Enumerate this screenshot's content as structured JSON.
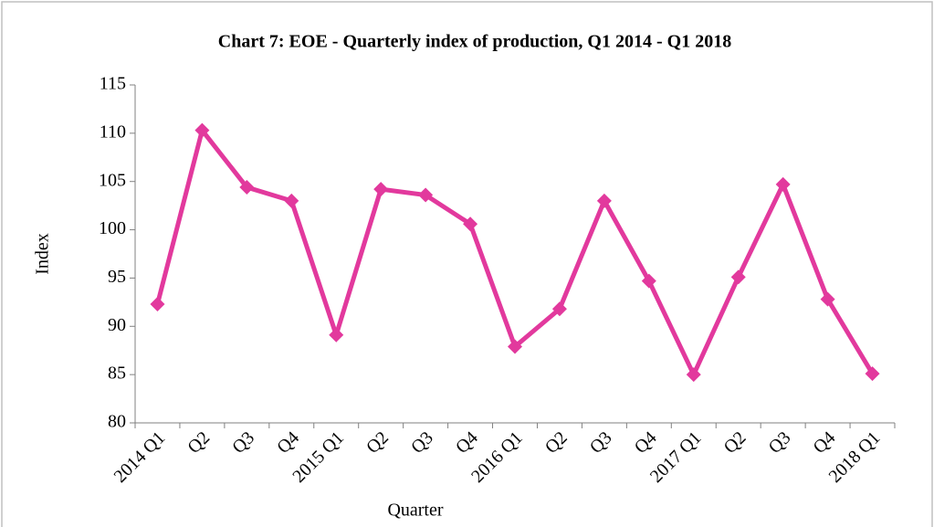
{
  "chart_data": {
    "type": "line",
    "title": "Chart 7: EOE - Quarterly index of production, Q1 2014 - Q1 2018",
    "x_label": "Quarter",
    "y_label": "Index",
    "categories": [
      "2014 Q1",
      "Q2",
      "Q3",
      "Q4",
      "2015 Q1",
      "Q2",
      "Q3",
      "Q4",
      "2016 Q1",
      "Q2",
      "Q3",
      "Q4",
      "2017 Q1",
      "Q2",
      "Q3",
      "Q4",
      "2018 Q1"
    ],
    "series": [
      {
        "name": "Index",
        "color": "#e2399d",
        "values": [
          92.3,
          110.3,
          104.4,
          103.0,
          89.1,
          104.2,
          103.6,
          100.6,
          87.9,
          91.8,
          103.0,
          94.7,
          85.0,
          95.1,
          104.7,
          92.8,
          85.1
        ]
      }
    ],
    "ylim": [
      80,
      115
    ],
    "yticks": [
      80,
      85,
      90,
      95,
      100,
      105,
      110,
      115
    ],
    "grid": false
  }
}
